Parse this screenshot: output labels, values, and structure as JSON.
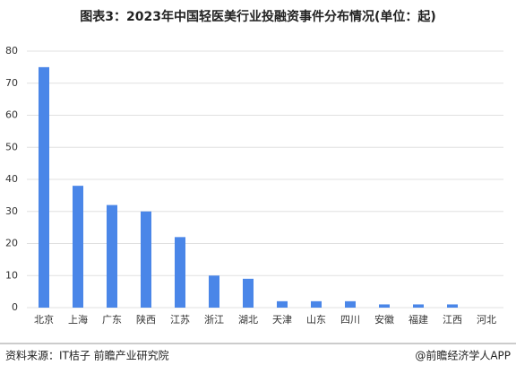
{
  "chart_data": {
    "type": "bar",
    "title": "图表3：2023年中国轻医美行业投融资事件分布情况(单位：起)",
    "categories": [
      "北京",
      "上海",
      "广东",
      "陕西",
      "江苏",
      "浙江",
      "湖北",
      "天津",
      "山东",
      "四川",
      "安徽",
      "福建",
      "江西",
      "河北"
    ],
    "values": [
      75,
      38,
      32,
      30,
      22,
      10,
      9,
      2,
      2,
      2,
      1,
      1,
      1,
      0
    ],
    "color": "#4a86e8",
    "ylim": [
      0,
      80
    ],
    "yticks": [
      0,
      10,
      20,
      30,
      40,
      50,
      60,
      70,
      80
    ],
    "grid": true,
    "source": "资料来源：IT桔子 前瞻产业研究院",
    "credit": "@前瞻经济学人APP"
  }
}
